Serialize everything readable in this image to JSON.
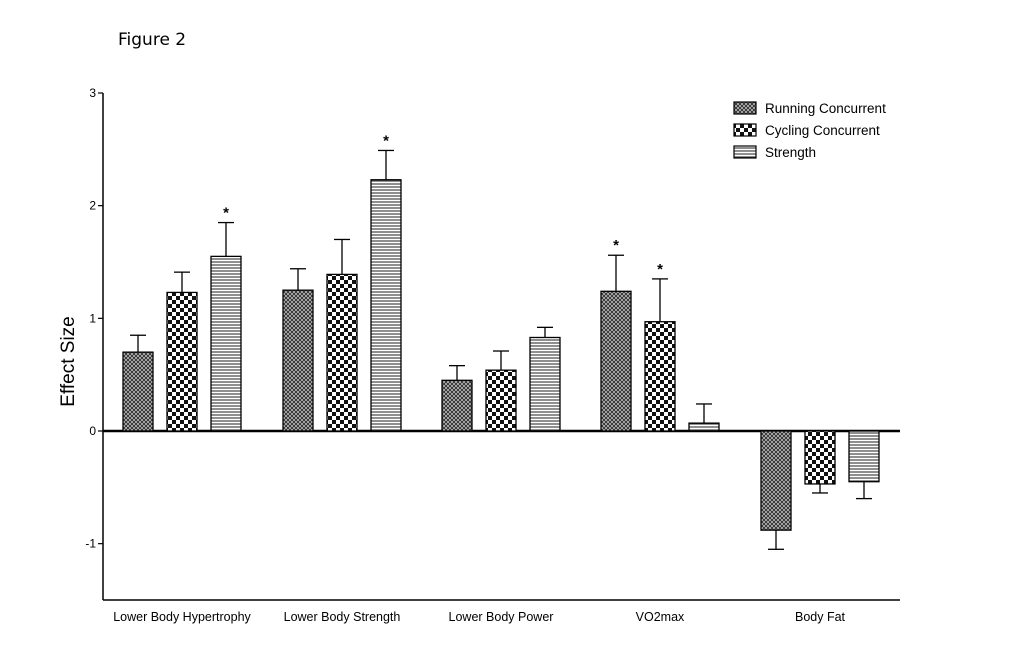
{
  "figure_label": "Figure 2",
  "chart_data": {
    "type": "bar",
    "title": "",
    "xlabel": "",
    "ylabel": "Effect Size",
    "ylim": [
      -1.5,
      3
    ],
    "yticks": [
      -1,
      0,
      1,
      2,
      3
    ],
    "grid": false,
    "legend_position": "top-right",
    "categories": [
      "Lower Body Hypertrophy",
      "Lower Body Strength",
      "Lower Body Power",
      "VO2max",
      "Body Fat"
    ],
    "series": [
      {
        "name": "Running Concurrent",
        "pattern": "fine-crosshatch",
        "values": [
          0.7,
          1.25,
          0.45,
          1.24,
          -0.88
        ],
        "error": [
          0.15,
          0.19,
          0.13,
          0.32,
          0.17
        ],
        "significant": [
          false,
          false,
          false,
          true,
          false
        ]
      },
      {
        "name": "Cycling Concurrent",
        "pattern": "checkerboard",
        "values": [
          1.23,
          1.39,
          0.54,
          0.97,
          -0.47
        ],
        "error": [
          0.18,
          0.31,
          0.17,
          0.38,
          0.08
        ],
        "significant": [
          false,
          false,
          false,
          true,
          false
        ]
      },
      {
        "name": "Strength",
        "pattern": "horizontal-lines",
        "values": [
          1.55,
          2.23,
          0.83,
          0.07,
          -0.45
        ],
        "error": [
          0.3,
          0.26,
          0.09,
          0.17,
          0.15
        ],
        "significant": [
          true,
          true,
          false,
          false,
          false
        ]
      }
    ],
    "significance_marker": "*"
  }
}
